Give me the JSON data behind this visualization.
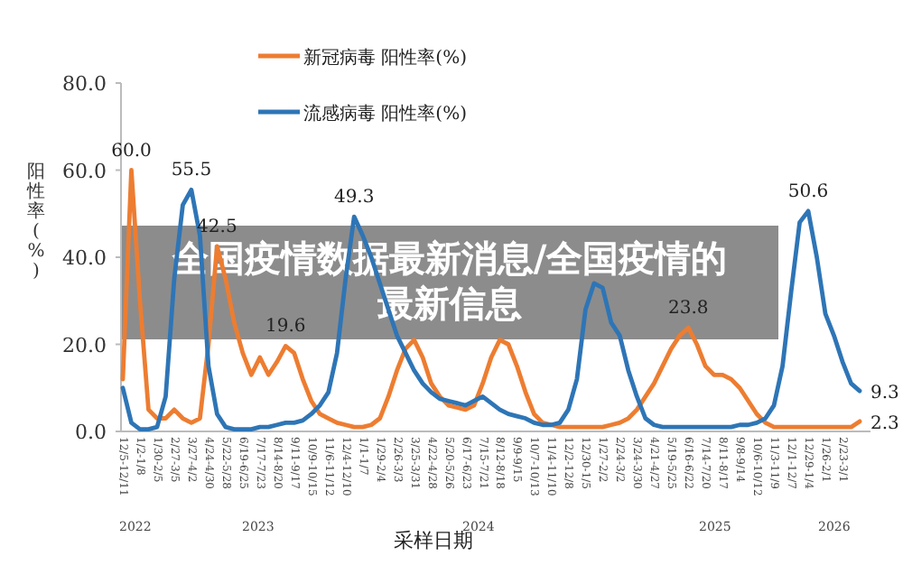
{
  "chart_data": {
    "type": "line",
    "title": "全国疫情数据最新消息/全国疫情的最新信息",
    "xlabel": "采样日期",
    "ylabel": "阳性率(%)",
    "categories": [
      "12/5-12/11",
      null,
      "1/2-1/8",
      null,
      "1/30-2/5",
      null,
      "2/27-3/5",
      null,
      "3/27-4/2",
      null,
      "4/24-4/30",
      null,
      "5/22-5/28",
      null,
      "6/19-6/25",
      null,
      "7/17-7/23",
      null,
      "8/14-8/20",
      null,
      "9/11-9/17",
      null,
      "10/9-10/15",
      null,
      "11/6-11/12",
      null,
      "12/4-12/10",
      null,
      "1/1-1/7",
      null,
      "1/29-2/4",
      null,
      "2/26-3/3",
      null,
      "3/25-3/31",
      null,
      "4/22-4/28",
      null,
      "5/20-5/26",
      null,
      "6/17-6/23",
      null,
      "7/15-7/21",
      null,
      "8/12-8/18",
      null,
      "9/9-9/15",
      null,
      "10/7-10/13",
      null,
      "11/4-11/10",
      null,
      "12/2-12/8",
      null,
      "12/30-1/5",
      null,
      "1/27-2/2",
      null,
      "2/24-3/2",
      null,
      "3/24-3/30",
      null,
      "4/21-4/27",
      null,
      "5/19-5/25",
      null,
      "6/16-6/22",
      null,
      "7/14-7/20",
      null,
      "8/11-8/17",
      null,
      "9/8-9/14",
      null,
      "10/6-10/12",
      null,
      "11/3-11/9",
      null,
      "12/1-12/7",
      null,
      "12/29-1/4",
      null,
      "1/26-2/1",
      null,
      "2/23-3/1",
      null,
      null
    ],
    "series": [
      {
        "name": "新冠病毒 阳性率(%)",
        "color": "#ed7d31",
        "values": [
          12,
          60,
          30,
          5,
          3,
          3,
          5,
          3,
          2,
          3,
          20,
          42.5,
          35,
          25,
          18,
          13,
          17,
          13,
          16,
          19.6,
          18,
          12,
          7,
          4,
          3,
          2,
          1.5,
          1,
          1,
          1.5,
          3,
          8,
          14,
          19,
          21,
          17,
          11,
          8,
          6,
          5.5,
          5,
          6,
          11,
          17,
          21,
          20,
          15,
          9,
          4,
          2,
          1.5,
          1,
          1,
          1,
          1,
          1,
          1,
          1.5,
          2,
          3,
          5,
          8,
          11,
          15,
          19,
          22,
          23.8,
          20,
          15,
          13,
          13,
          12,
          10,
          7,
          4,
          2,
          1,
          1,
          1,
          1,
          1,
          1,
          1,
          1,
          1,
          1,
          2.3
        ],
        "value_labels": [
          null,
          "60.0",
          null,
          null,
          null,
          null,
          null,
          null,
          null,
          null,
          null,
          "42.5",
          null,
          null,
          null,
          null,
          null,
          null,
          null,
          "19.6",
          null,
          null,
          null,
          null,
          null,
          null,
          null,
          null,
          null,
          null,
          null,
          null,
          null,
          null,
          null,
          null,
          null,
          null,
          null,
          null,
          null,
          null,
          null,
          null,
          null,
          null,
          null,
          null,
          null,
          null,
          null,
          null,
          null,
          null,
          null,
          null,
          null,
          null,
          null,
          null,
          null,
          null,
          null,
          null,
          null,
          null,
          "23.8",
          null,
          null,
          null,
          null,
          null,
          null,
          null,
          null,
          null,
          null,
          null,
          null,
          null,
          null,
          null,
          null,
          null,
          null,
          null,
          "2.3"
        ]
      },
      {
        "name": "流感病毒 阳性率(%)",
        "color": "#2e75b6",
        "values": [
          10,
          2,
          0.5,
          0.5,
          1,
          8,
          35,
          52,
          55.5,
          45,
          15,
          4,
          1,
          0.5,
          0.5,
          0.5,
          1,
          1,
          1.5,
          2,
          2,
          2.5,
          4,
          6,
          9,
          18,
          35,
          49.3,
          45,
          40,
          34,
          28,
          22,
          18,
          14,
          11,
          9,
          7.5,
          7,
          6.5,
          6,
          7,
          8,
          6.5,
          5,
          4,
          3.5,
          3,
          2,
          1.5,
          1.5,
          2,
          5,
          12,
          28,
          34,
          33,
          25,
          22,
          14,
          8,
          3,
          1.5,
          1,
          1,
          1,
          1,
          1,
          1,
          1,
          1,
          1,
          1.5,
          1.5,
          2,
          3,
          6,
          15,
          32,
          48,
          50.6,
          40,
          27,
          22,
          16,
          11,
          9.3
        ],
        "value_labels": [
          null,
          null,
          null,
          null,
          null,
          null,
          null,
          null,
          "55.5",
          null,
          null,
          null,
          null,
          null,
          null,
          null,
          null,
          null,
          null,
          null,
          null,
          null,
          null,
          null,
          null,
          null,
          null,
          "49.3",
          null,
          null,
          null,
          null,
          null,
          null,
          null,
          null,
          null,
          null,
          null,
          null,
          null,
          null,
          null,
          null,
          null,
          null,
          null,
          null,
          null,
          null,
          null,
          null,
          null,
          null,
          null,
          null,
          null,
          null,
          null,
          null,
          null,
          null,
          null,
          null,
          null,
          null,
          null,
          null,
          null,
          null,
          null,
          null,
          null,
          null,
          null,
          null,
          null,
          null,
          null,
          null,
          "50.6",
          null,
          null,
          null,
          null,
          null,
          "9.3"
        ]
      }
    ],
    "ylim": [
      0,
      80
    ],
    "yticks": [
      {
        "value": 0,
        "label": "0.0"
      },
      {
        "value": 20,
        "label": "20.0"
      },
      {
        "value": 40,
        "label": "40.0"
      },
      {
        "value": 60,
        "label": "60.0"
      },
      {
        "value": 80,
        "label": "80.0"
      }
    ],
    "grid": false,
    "legend": "top",
    "marker": "none",
    "line_style": "solid",
    "annotations": [
      "2022",
      "2023",
      "2024",
      "2025",
      "2026"
    ]
  }
}
